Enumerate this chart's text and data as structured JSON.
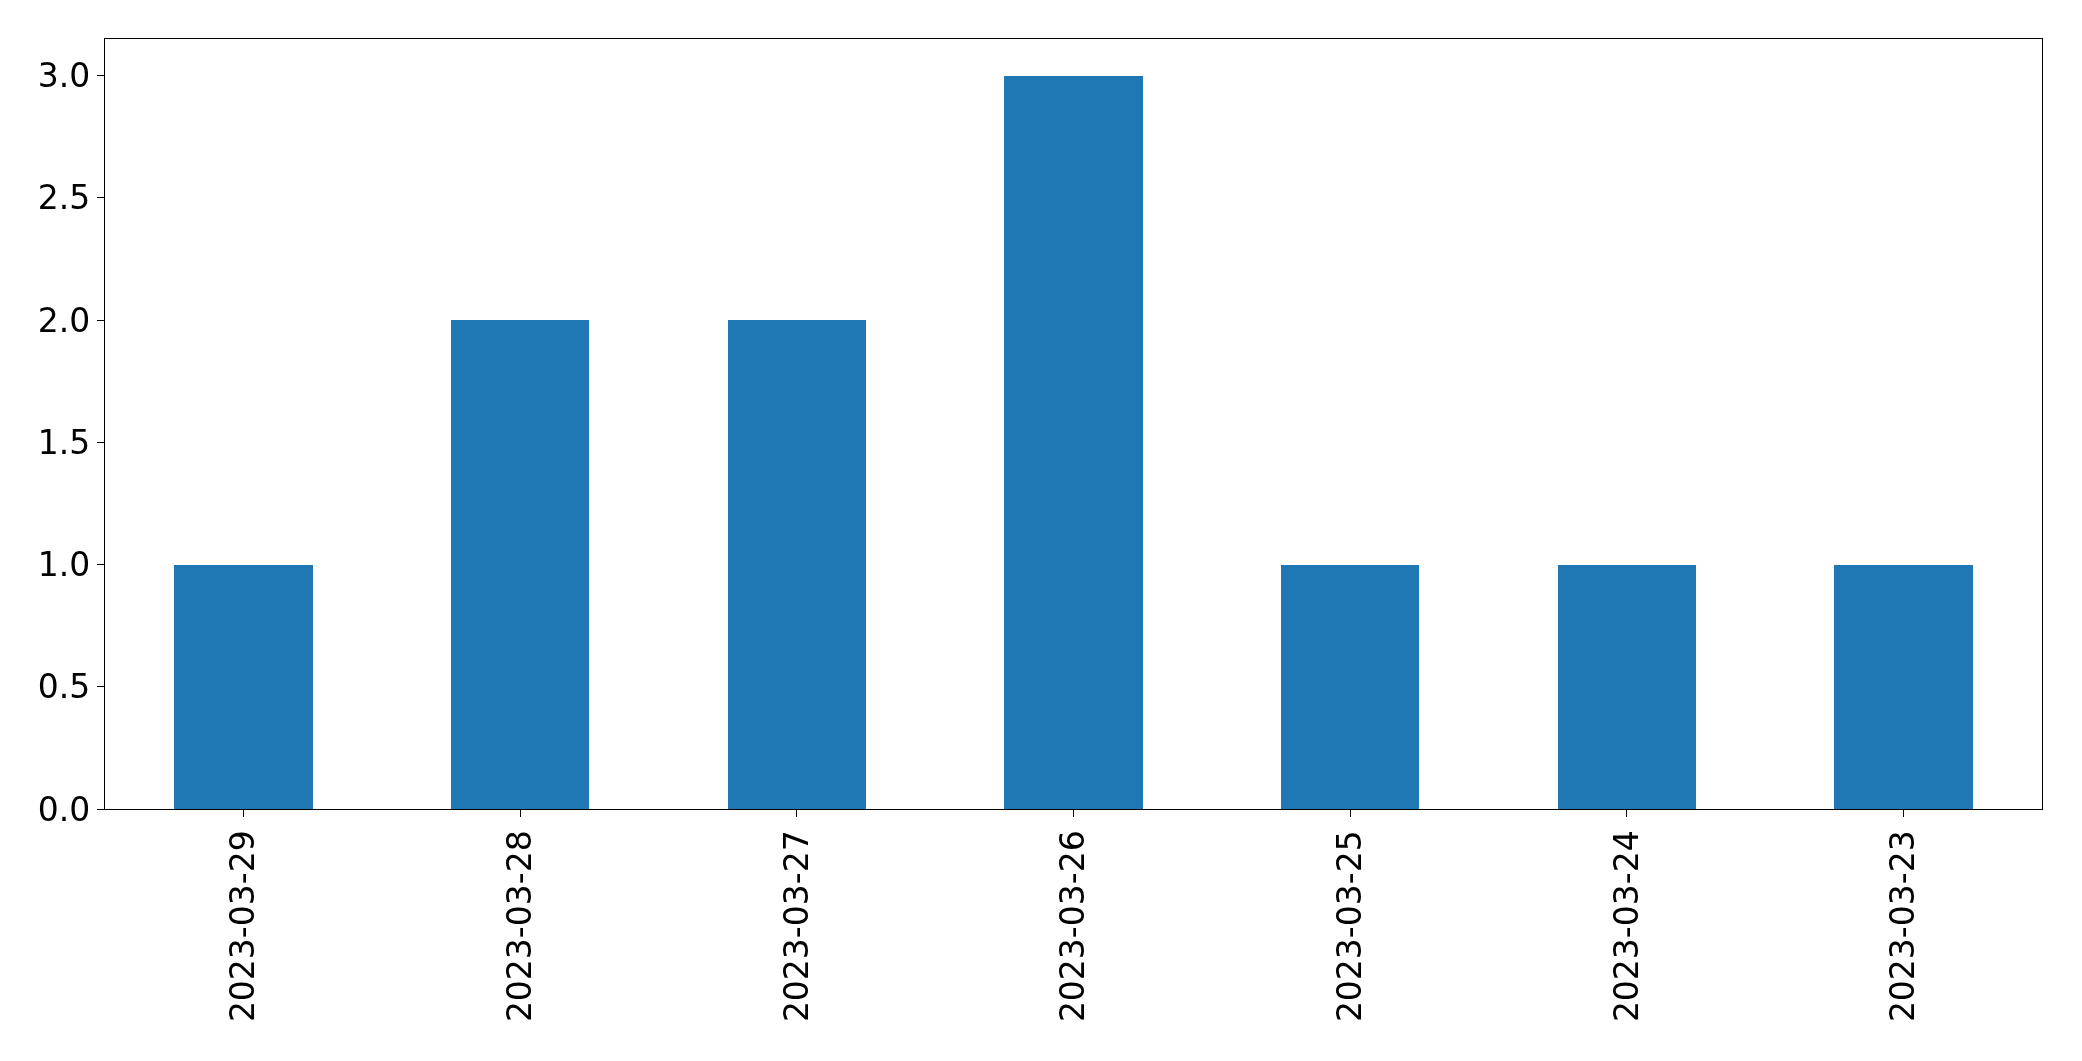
{
  "chart_data": {
    "type": "bar",
    "categories": [
      "2023-03-29",
      "2023-03-28",
      "2023-03-27",
      "2023-03-26",
      "2023-03-25",
      "2023-03-24",
      "2023-03-23"
    ],
    "values": [
      1,
      2,
      2,
      3,
      1,
      1,
      1
    ],
    "color": "#1f77b4",
    "ylim": [
      0,
      3.15
    ],
    "yticks": [
      {
        "value": 0,
        "label": "0.0"
      },
      {
        "value": 0.5,
        "label": "0.5"
      },
      {
        "value": 1,
        "label": "1.0"
      },
      {
        "value": 1.5,
        "label": "1.5"
      },
      {
        "value": 2,
        "label": "2.0"
      },
      {
        "value": 2.5,
        "label": "2.5"
      },
      {
        "value": 3,
        "label": "3.0"
      }
    ]
  }
}
